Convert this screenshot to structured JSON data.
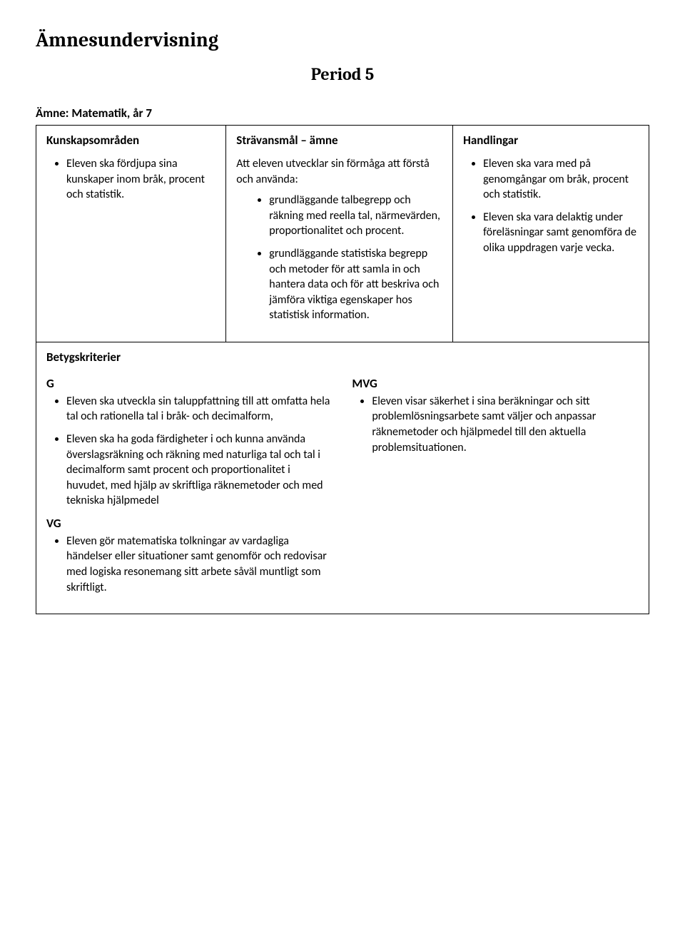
{
  "page_title": "Ämnesundervisning",
  "period": "Period 5",
  "subject_line": "Ämne: Matematik, år 7",
  "col1": {
    "heading": "Kunskapsområden",
    "items": [
      "Eleven ska fördjupa sina kunskaper inom bråk, procent och statistik."
    ]
  },
  "col2": {
    "heading": "Strävansmål – ämne",
    "intro": "Att eleven utvecklar sin förmåga att förstå och använda:",
    "items": [
      "grundläggande talbegrepp och räkning med reella tal, närmevärden, proportionalitet och procent.",
      "grundläggande statistiska begrepp och metoder för att samla in och hantera data och för att beskriva och jämföra viktiga egenskaper hos statistisk information."
    ]
  },
  "col3": {
    "heading": "Handlingar",
    "items": [
      "Eleven ska vara med på genomgångar om bråk, procent och statistik.",
      "Eleven ska vara delaktig under föreläsningar samt genomföra de olika uppdragen varje vecka."
    ]
  },
  "criteria": {
    "heading": "Betygskriterier",
    "g_label": "G",
    "g_items": [
      "Eleven ska utveckla sin taluppfattning till att omfatta hela tal och rationella tal i bråk- och decimalform,",
      "Eleven ska ha goda färdigheter i och kunna använda överslagsräkning och räkning med naturliga tal och tal i decimalform samt procent och proportionalitet i huvudet, med hjälp av skriftliga räknemetoder och med tekniska hjälpmedel"
    ],
    "vg_label": "VG",
    "vg_items": [
      "Eleven gör matematiska tolkningar av vardagliga händelser eller situationer samt genomför och redovisar med logiska resonemang sitt arbete såväl muntligt som skriftligt."
    ],
    "mvg_label": "MVG",
    "mvg_items": [
      "Eleven visar säkerhet i sina beräkningar och sitt problemlösningsarbete samt väljer och anpassar räknemetoder och hjälpmedel till den aktuella problemsituationen."
    ]
  }
}
